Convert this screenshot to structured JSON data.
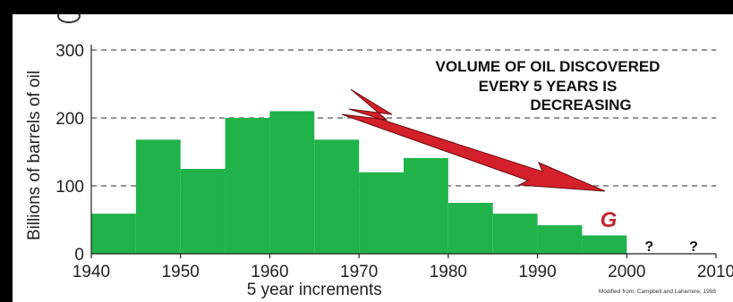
{
  "chart_data": {
    "type": "bar",
    "title": "",
    "xlabel": "5 year increments",
    "ylabel": "Billions of barrels of oil",
    "ylim": [
      0,
      300
    ],
    "xlim": [
      1940,
      2010
    ],
    "yticks": [
      0,
      100,
      200,
      300
    ],
    "xticks": [
      1940,
      1950,
      1960,
      1970,
      1980,
      1990,
      2000,
      2010
    ],
    "grid": "horizontal dashed",
    "bar_color": "#1fb34a",
    "bars": [
      {
        "start": 1940,
        "end": 1945,
        "value": 59
      },
      {
        "start": 1945,
        "end": 1950,
        "value": 168
      },
      {
        "start": 1950,
        "end": 1955,
        "value": 125
      },
      {
        "start": 1955,
        "end": 1960,
        "value": 200
      },
      {
        "start": 1960,
        "end": 1965,
        "value": 210
      },
      {
        "start": 1965,
        "end": 1970,
        "value": 168
      },
      {
        "start": 1970,
        "end": 1975,
        "value": 120
      },
      {
        "start": 1975,
        "end": 1980,
        "value": 141
      },
      {
        "start": 1980,
        "end": 1985,
        "value": 75
      },
      {
        "start": 1985,
        "end": 1990,
        "value": 59
      },
      {
        "start": 1990,
        "end": 1995,
        "value": 42
      },
      {
        "start": 1995,
        "end": 2000,
        "value": 27
      }
    ],
    "unknown_periods": [
      {
        "center": 2002.5,
        "label": "?"
      },
      {
        "center": 2007.5,
        "label": "?"
      }
    ],
    "annotation": {
      "lines": [
        "VOLUME OF OIL DISCOVERED",
        "EVERY 5 YEARS IS",
        "DECREASING"
      ],
      "arrow_color": "#d4202a"
    },
    "marker_label": "G",
    "marker_color": "#c42530",
    "source_note": "Modified from: Campbell and Laherrere, 1998"
  }
}
